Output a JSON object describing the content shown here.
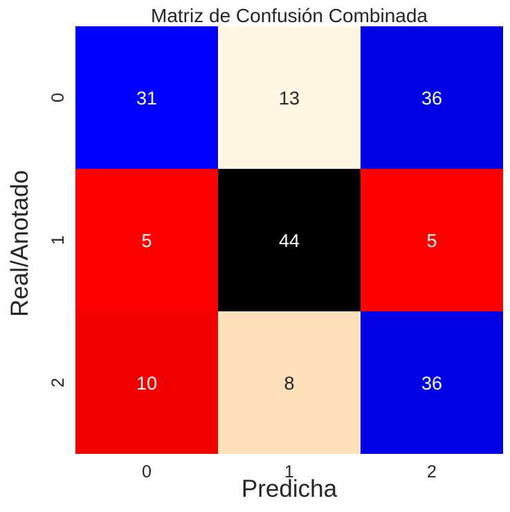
{
  "chart_data": {
    "type": "heatmap",
    "title": "Matriz de Confusión Combinada",
    "xlabel": "Predicha",
    "ylabel": "Real/Anotado",
    "x_categories": [
      "0",
      "1",
      "2"
    ],
    "y_categories": [
      "0",
      "1",
      "2"
    ],
    "values": [
      [
        31,
        13,
        36
      ],
      [
        5,
        44,
        5
      ],
      [
        10,
        8,
        36
      ]
    ],
    "cell_colors": [
      [
        "#0000ff",
        "#fff7e3",
        "#0000e5"
      ],
      [
        "#ff0000",
        "#000000",
        "#ff0000"
      ],
      [
        "#f00000",
        "#ffe1bc",
        "#0000e5"
      ]
    ],
    "cell_text_colors": [
      [
        "#ffffff",
        "#262626",
        "#ffffff"
      ],
      [
        "#ffffff",
        "#ffffff",
        "#ffffff"
      ],
      [
        "#ffffff",
        "#262626",
        "#ffffff"
      ]
    ],
    "colorbar": false,
    "grid": false
  }
}
